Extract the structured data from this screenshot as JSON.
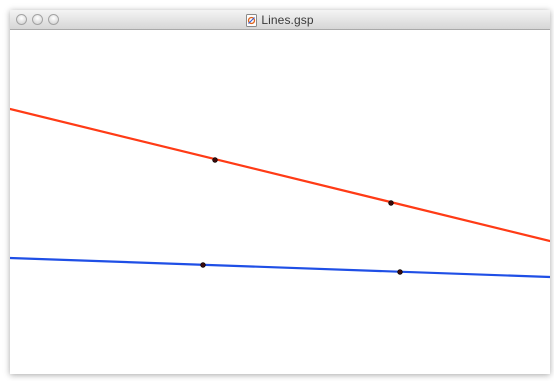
{
  "window": {
    "title": "Lines.gsp",
    "document_icon": "gsp-document-icon",
    "buttons": [
      "close-button",
      "minimize-button",
      "zoom-button"
    ]
  },
  "sketch": {
    "lines": [
      {
        "name": "red-line",
        "color": "#ff3b16"
      },
      {
        "name": "blue-line",
        "color": "#1f4fe6"
      }
    ],
    "point_color": "#3a0a0a"
  }
}
